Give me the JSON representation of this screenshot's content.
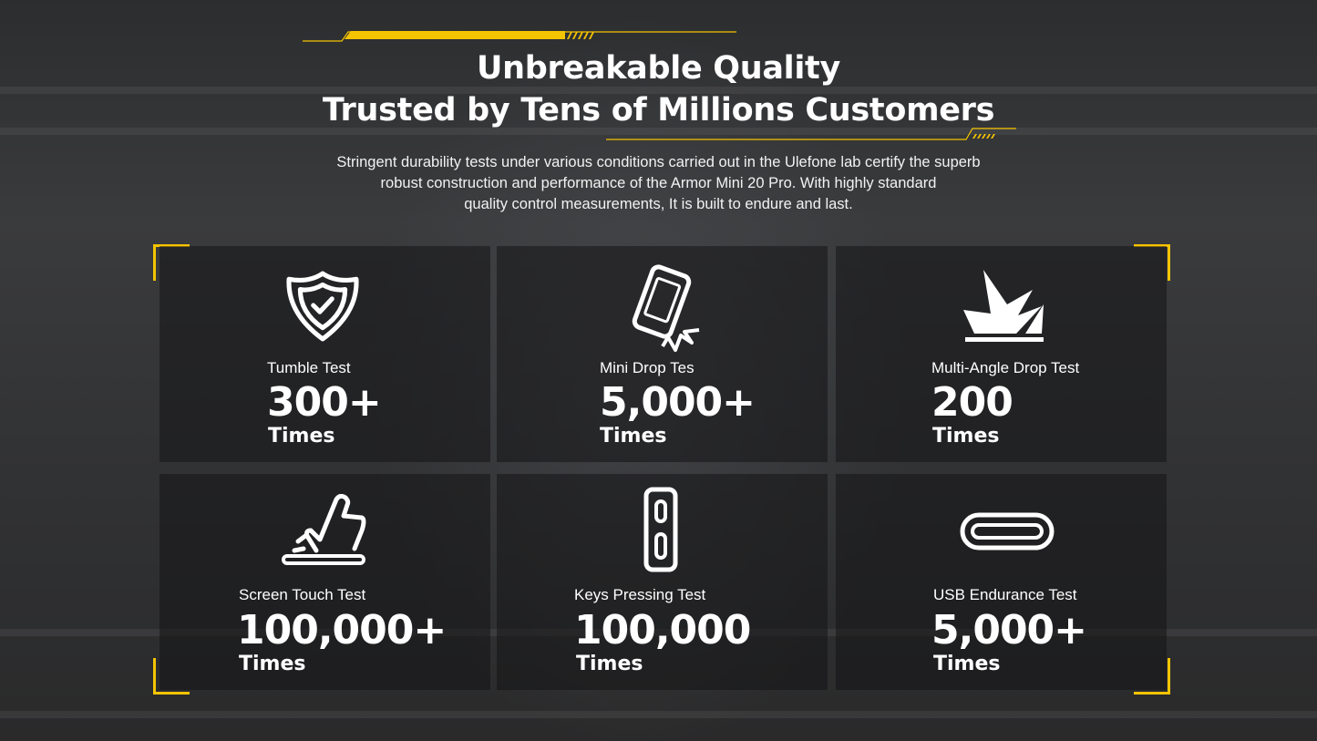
{
  "header": {
    "title_line1": "Unbreakable Quality",
    "title_line2": "Trusted by Tens of Millions Customers",
    "description_lines": [
      "Stringent durability tests under various conditions carried out in the Ulefone lab certify the superb",
      "robust construction and performance of the Armor Mini 20 Pro. With highly standard",
      "quality control measurements, It is built to endure and last."
    ]
  },
  "accent_color": "#f5c400",
  "tests": [
    {
      "icon": "shield-check-icon",
      "label": "Tumble Test",
      "value": "300+",
      "unit": "Times"
    },
    {
      "icon": "phone-drop-icon",
      "label": "Mini Drop Tes",
      "value": "5,000+",
      "unit": "Times"
    },
    {
      "icon": "impact-burst-icon",
      "label": "Multi-Angle Drop Test",
      "value": "200",
      "unit": "Times"
    },
    {
      "icon": "finger-touch-icon",
      "label": "Screen Touch Test",
      "value": "100,000+",
      "unit": "Times"
    },
    {
      "icon": "side-keys-icon",
      "label": "Keys Pressing Test",
      "value": "100,000",
      "unit": "Times"
    },
    {
      "icon": "usb-c-port-icon",
      "label": "USB Endurance Test",
      "value": "5,000+",
      "unit": "Times"
    }
  ]
}
